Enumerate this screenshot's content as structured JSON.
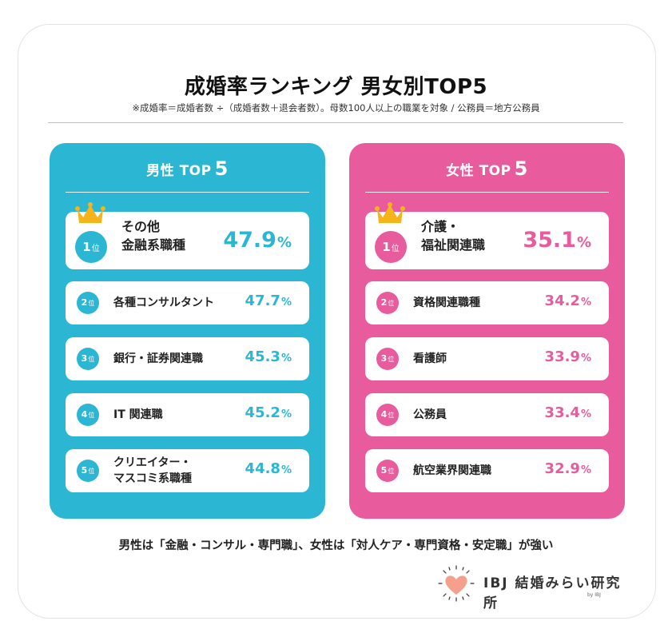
{
  "title": "成婚率ランキング 男女別TOP5",
  "subtitle": "※成婚率＝成婚者数 ÷（成婚者数＋退会者数）。母数100人以上の職業を対象 / 公務員＝地方公務員",
  "rank_suffix": "位",
  "percent_unit": "%",
  "male": {
    "heading": "男性 TOP",
    "heading_num": "5",
    "color": "#2bb7d3",
    "items": [
      {
        "rank": "1",
        "line1": "その他",
        "line2": "金融系職種",
        "value": "47.9"
      },
      {
        "rank": "2",
        "line1": "各種コンサルタント",
        "line2": "",
        "value": "47.7"
      },
      {
        "rank": "3",
        "line1": "銀行・証券関連職",
        "line2": "",
        "value": "45.3"
      },
      {
        "rank": "4",
        "line1": "IT 関連職",
        "line2": "",
        "value": "45.2"
      },
      {
        "rank": "5",
        "line1": "クリエイター・",
        "line2": "マスコミ系職種",
        "value": "44.8"
      }
    ]
  },
  "female": {
    "heading": "女性 TOP",
    "heading_num": "5",
    "color": "#e85c9d",
    "items": [
      {
        "rank": "1",
        "line1": "介護・",
        "line2": "福祉関連職",
        "value": "35.1"
      },
      {
        "rank": "2",
        "line1": "資格関連職種",
        "line2": "",
        "value": "34.2"
      },
      {
        "rank": "3",
        "line1": "看護師",
        "line2": "",
        "value": "33.9"
      },
      {
        "rank": "4",
        "line1": "公務員",
        "line2": "",
        "value": "33.4"
      },
      {
        "rank": "5",
        "line1": "航空業界関連職",
        "line2": "",
        "value": "32.9"
      }
    ]
  },
  "summary": "男性は「金融・コンサル・専門職」、女性は「対人ケア・専門資格・安定職」が強い",
  "logo": {
    "name": "IBJ 結婚みらい研究所",
    "by": "by IBJ",
    "icon": "heart-sunburst-icon",
    "heart_color": "#f5a08c"
  },
  "crown_color": "#f4b41a"
}
